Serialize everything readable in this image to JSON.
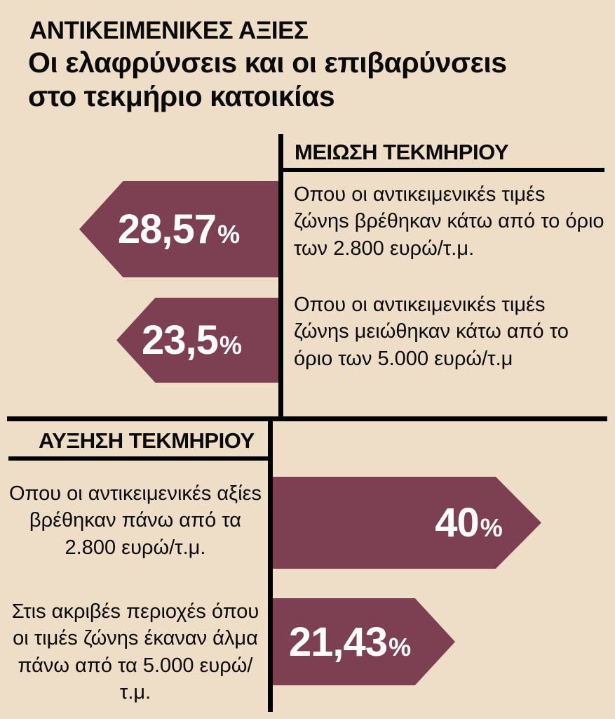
{
  "colors": {
    "background": "#eeddc7",
    "arrow": "#7d4052",
    "line": "#000000",
    "percent_text": "#ffffff"
  },
  "title": {
    "kicker": "ΑΝΤΙΚΕΙΜΕΝΙΚΕΣ ΑΞΙΕΣ",
    "line1": "Οι ελαφρύνσειs και οι επιβαρύνσειs",
    "line2": "στο τεκμήριο κατοικίαs"
  },
  "chart_data": {
    "type": "bar",
    "title": "ΑΝΤΙΚΕΙΜΕΝΙΚΕΣ ΑΞΙΕΣ — Οι ελαφρύνσειs και οι επιβαρύνσειs στο τεκμήριο κατοικίαs",
    "unit": "%",
    "legend_position": "none",
    "series": [
      {
        "name": "ΜΕΙΩΣΗ ΤΕΚΜΗΡΙΟΥ",
        "direction": "left",
        "points": [
          {
            "value": 28.57,
            "display": "28,57",
            "unit": "%",
            "label": "Οπου οι αντικειμενικέs τιμέs ζώνηs βρέθηκαν κάτω από το όριο των 2.800 ευρώ/τ.μ."
          },
          {
            "value": 23.5,
            "display": "23,5",
            "unit": "%",
            "label": "Οπου οι αντικειμενικέs τιμέs ζώνηs μειώθηκαν κάτω από το όριο των 5.000 ευρώ/τ.μ"
          }
        ]
      },
      {
        "name": "ΑΥΞΗΣΗ ΤΕΚΜΗΡΙΟΥ",
        "direction": "right",
        "points": [
          {
            "value": 40,
            "display": "40",
            "unit": "%",
            "label": "Οπου οι αντικειμενικέs αξίεs βρέθηκαν πάνω από τα 2.800 ευρώ/τ.μ."
          },
          {
            "value": 21.43,
            "display": "21,43",
            "unit": "%",
            "label": "Στιs ακριβέs περιοχέs όπου οι τιμέs ζώνηs έκαναν άλμα πάνω από τα 5.000 ευρώ/τ.μ."
          }
        ]
      }
    ]
  }
}
